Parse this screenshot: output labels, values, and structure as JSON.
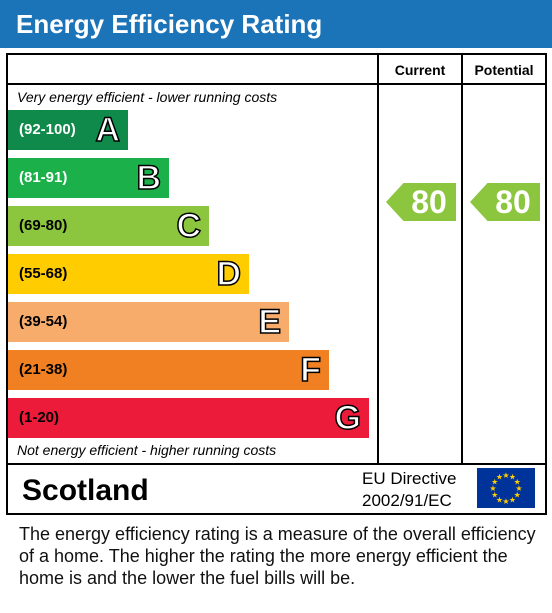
{
  "header": {
    "title": "Energy Efficiency Rating"
  },
  "table": {
    "col_current": "Current",
    "col_potential": "Potential",
    "top_caption": "Very energy efficient - lower running costs",
    "bottom_caption": "Not energy efficient - higher running costs"
  },
  "colors": {
    "header": "#1b73b8",
    "A": "#0f8a4a",
    "B": "#1bb04a",
    "C": "#8cc63f",
    "D": "#ffcc00",
    "E": "#f7ac6b",
    "F": "#f08022",
    "G": "#ed1b3a",
    "eu_blue": "#003399",
    "eu_star": "#ffcc00"
  },
  "chart_data": {
    "type": "bar",
    "title": "Energy Efficiency Rating",
    "categories": [
      "A",
      "B",
      "C",
      "D",
      "E",
      "F",
      "G"
    ],
    "ranges": [
      "(92-100)",
      "(81-91)",
      "(69-80)",
      "(55-68)",
      "(39-54)",
      "(21-38)",
      "(1-20)"
    ],
    "current_rating": 80,
    "potential_rating": 80
  },
  "footer": {
    "country": "Scotland",
    "directive_line1": "EU Directive",
    "directive_line2": "2002/91/EC",
    "description": "The energy efficiency rating is a measure of the overall efficiency of a home.  The higher the rating the more energy efficient the home is and the lower the fuel bills will be."
  }
}
